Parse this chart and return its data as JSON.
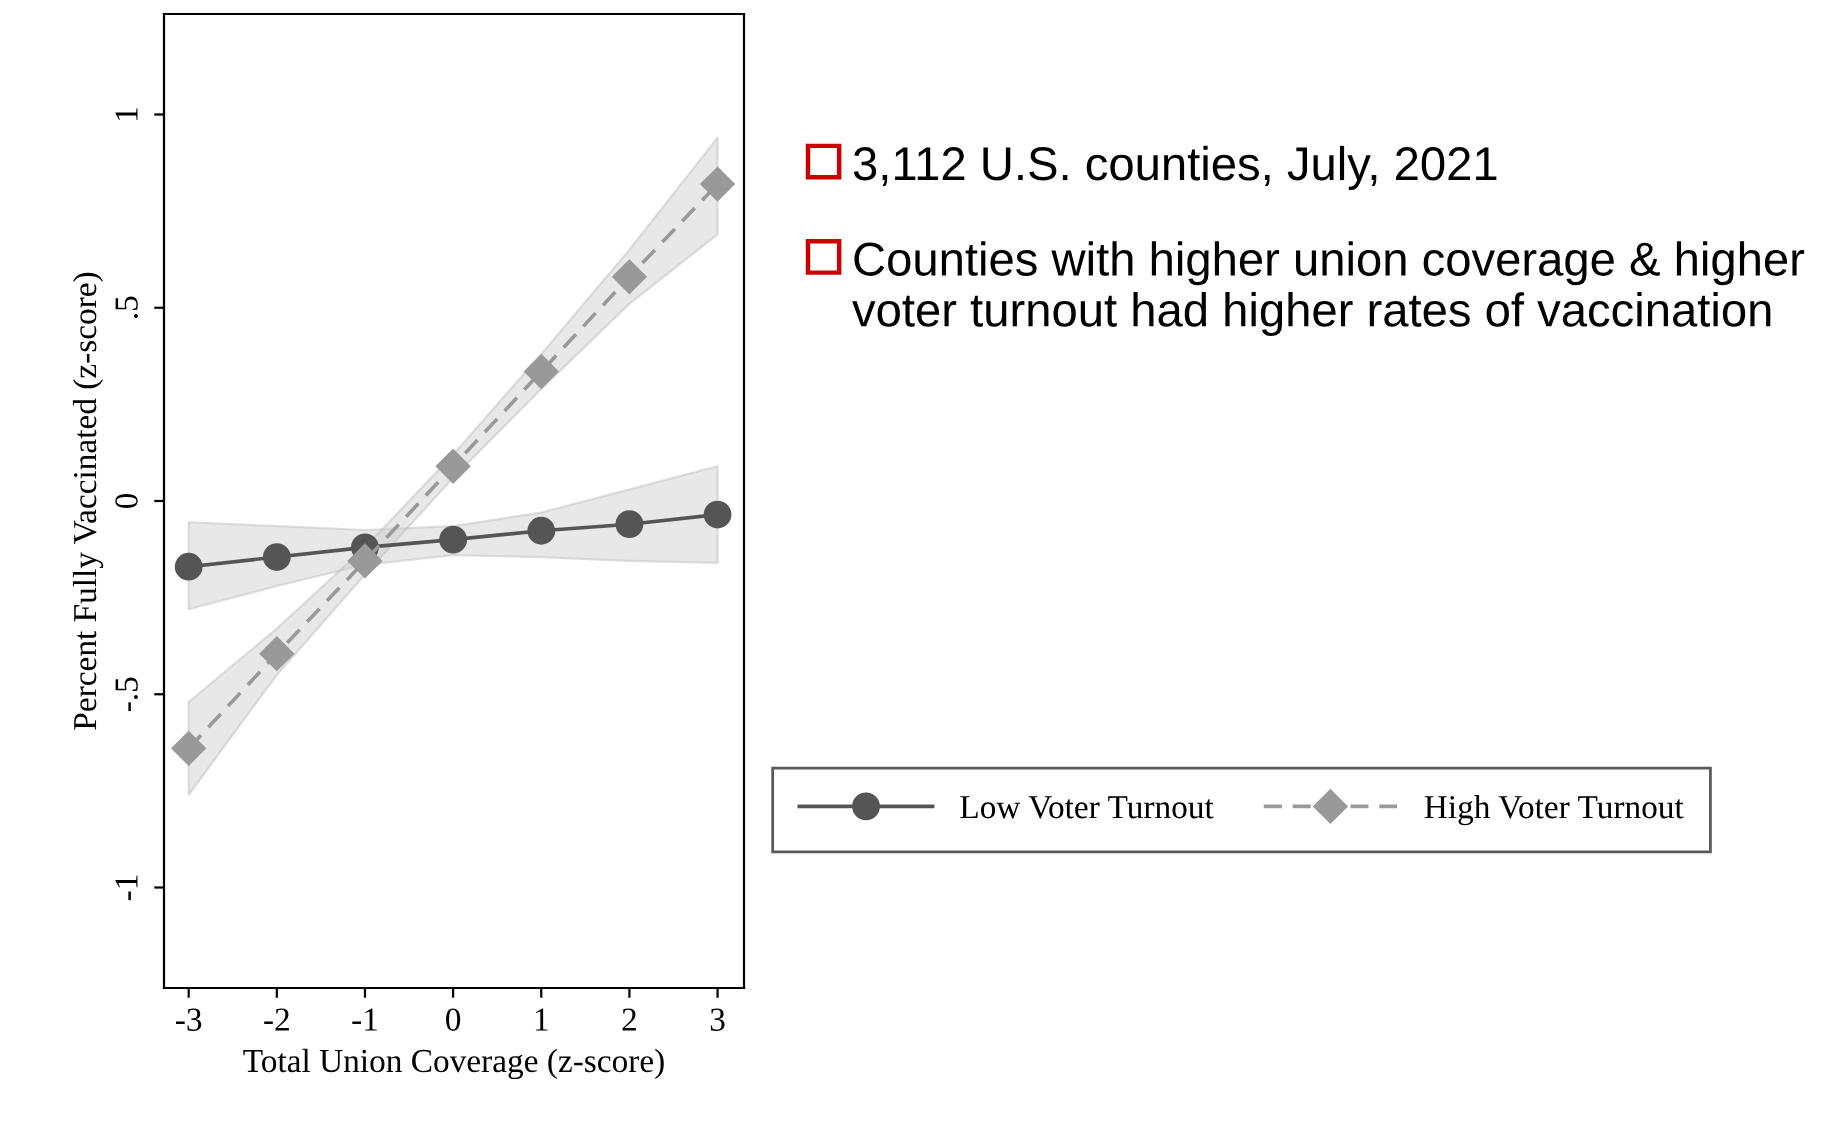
{
  "chart_data": {
    "type": "line",
    "xlabel": "Total Union Coverage (z-score)",
    "ylabel": "Percent Fully Vaccinated (z-score)",
    "x": [
      -3,
      -2,
      -1,
      0,
      1,
      2,
      3
    ],
    "series": [
      {
        "name": "Low Voter Turnout",
        "color": "#555555",
        "marker": "circle",
        "line_style": "solid",
        "values": [
          -0.17,
          -0.145,
          -0.12,
          -0.1,
          -0.077,
          -0.06,
          -0.035
        ],
        "lower": [
          -0.28,
          -0.22,
          -0.165,
          -0.14,
          -0.145,
          -0.155,
          -0.16
        ],
        "upper": [
          -0.055,
          -0.065,
          -0.075,
          -0.065,
          -0.03,
          0.03,
          0.09
        ]
      },
      {
        "name": "High Voter Turnout",
        "color": "#999999",
        "marker": "diamond",
        "line_style": "dashed",
        "values": [
          -0.64,
          -0.395,
          -0.155,
          0.09,
          0.335,
          0.58,
          0.82
        ],
        "lower": [
          -0.76,
          -0.45,
          -0.19,
          0.06,
          0.29,
          0.51,
          0.69
        ],
        "upper": [
          -0.52,
          -0.33,
          -0.12,
          0.12,
          0.38,
          0.65,
          0.94
        ]
      }
    ],
    "xlim": [
      -3.28,
      3.3
    ],
    "xticks": [
      -3,
      -2,
      -1,
      0,
      1,
      2,
      3
    ],
    "ylim": [
      -1.26,
      1.26
    ],
    "yticks": [
      {
        "value": -1,
        "label": "-1"
      },
      {
        "value": -0.5,
        "label": "-.5"
      },
      {
        "value": 0,
        "label": "0"
      },
      {
        "value": 0.5,
        "label": ".5"
      },
      {
        "value": 1,
        "label": "1"
      }
    ],
    "grid": false,
    "legend": "right",
    "annotations": [
      "3,112 U.S. counties, July, 2021",
      "Counties with higher union coverage & higher voter turnout had higher rates of vaccination"
    ]
  }
}
